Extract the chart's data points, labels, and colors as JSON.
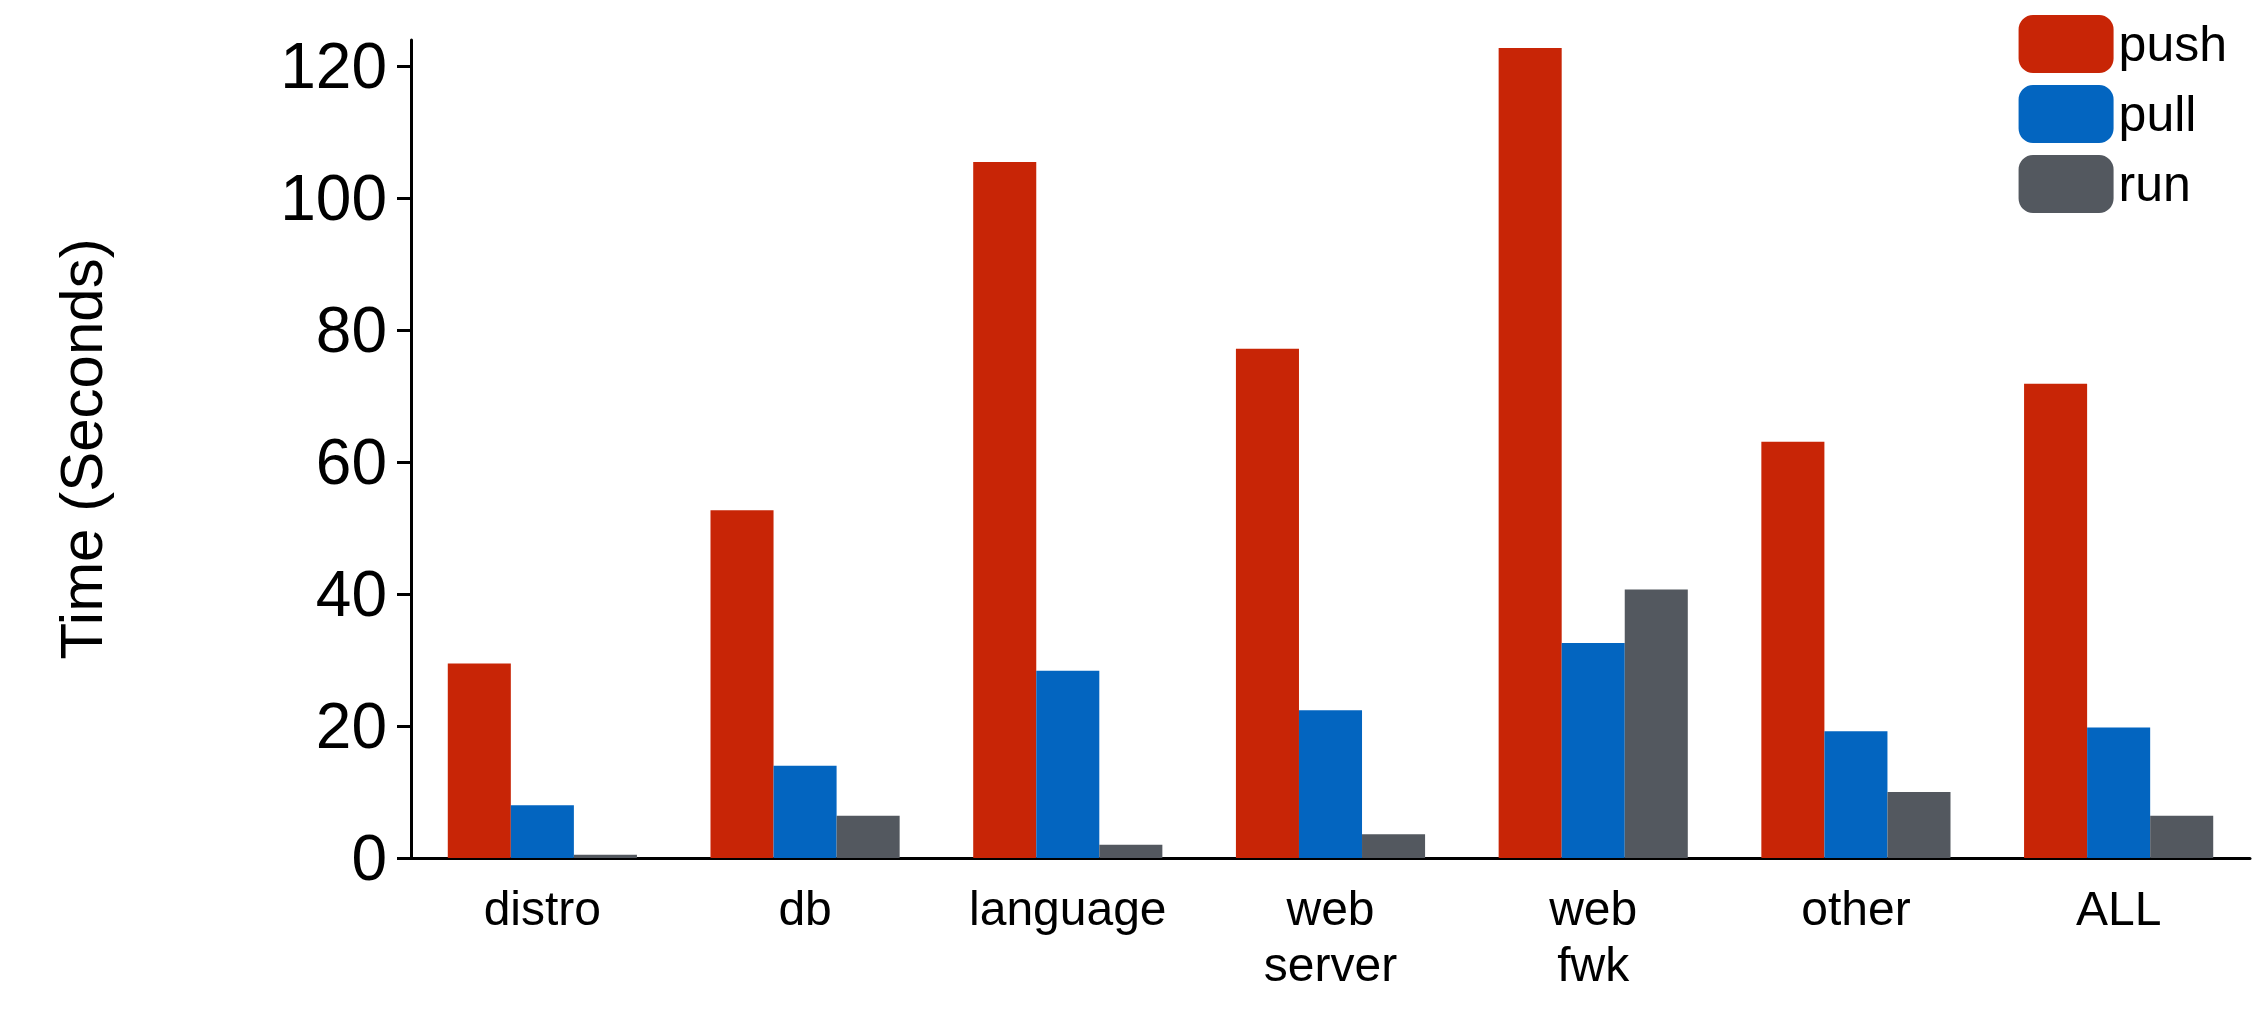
{
  "chart_data": {
    "type": "bar",
    "ylabel": "Time (Seconds)",
    "categories": [
      "distro",
      "db",
      "language",
      "web\nserver",
      "web\nfwk",
      "other",
      "ALL"
    ],
    "series": [
      {
        "name": "push",
        "color": "#c82506",
        "values": [
          29.5,
          52.7,
          105.5,
          77.2,
          122.8,
          63.1,
          71.9
        ]
      },
      {
        "name": "pull",
        "color": "#0365c0",
        "values": [
          8,
          14,
          28.4,
          22.4,
          32.6,
          19.2,
          19.8
        ]
      },
      {
        "name": "run",
        "color": "#53585f",
        "values": [
          0.5,
          6.4,
          2,
          3.6,
          40.7,
          10,
          6.4
        ]
      }
    ],
    "ylim": [
      0,
      124
    ],
    "yticks": [
      0,
      20,
      40,
      60,
      80,
      100,
      120
    ],
    "grid": false,
    "legend": "top right"
  }
}
